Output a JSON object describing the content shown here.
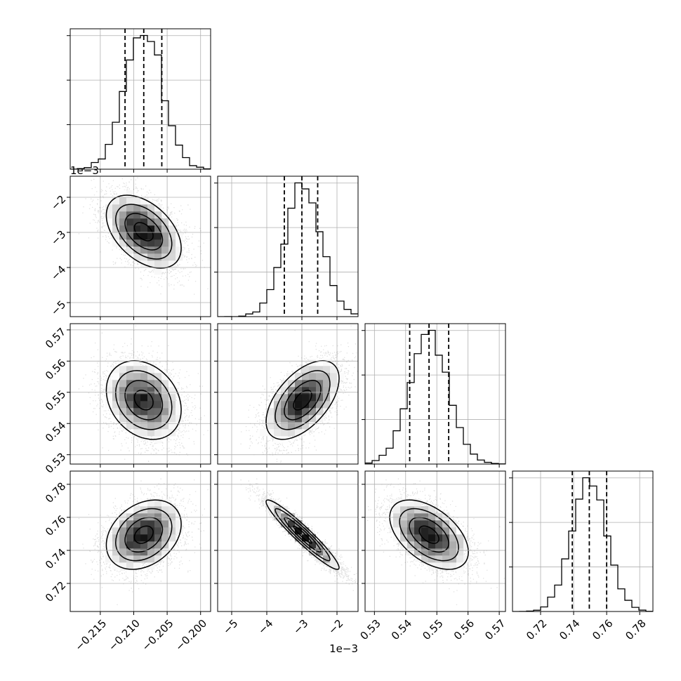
{
  "chart_data": {
    "type": "corner",
    "grid": true,
    "parameters": [
      {
        "range": [
          -0.2195,
          -0.1985
        ],
        "ticks": [
          -0.215,
          -0.21,
          -0.205,
          -0.2
        ],
        "tick_labels": [
          "−0.215",
          "−0.210",
          "−0.205",
          "−0.200"
        ],
        "offset_label": "",
        "center": -0.2085,
        "spread": 0.0028
      },
      {
        "range": [
          -5.4,
          -1.4
        ],
        "ticks": [
          -5,
          -4,
          -3,
          -2
        ],
        "tick_labels": [
          "−5",
          "−4",
          "−3",
          "−2"
        ],
        "offset_label": "1e−3",
        "center": -2.98,
        "spread": 0.52
      },
      {
        "range": [
          0.527,
          0.572
        ],
        "ticks": [
          0.53,
          0.54,
          0.55,
          0.56,
          0.57
        ],
        "tick_labels": [
          "0.53",
          "0.54",
          "0.55",
          "0.56",
          "0.57"
        ],
        "offset_label": "",
        "center": 0.5475,
        "spread": 0.0063
      },
      {
        "range": [
          0.703,
          0.788
        ],
        "ticks": [
          0.72,
          0.74,
          0.76,
          0.78
        ],
        "tick_labels": [
          "0.72",
          "0.74",
          "0.76",
          "0.78"
        ],
        "offset_label": "",
        "center": 0.7495,
        "spread": 0.0105
      }
    ],
    "correlations": {
      "1_0": -0.45,
      "2_0": -0.25,
      "2_1": 0.55,
      "3_0": 0.3,
      "3_1": -0.95,
      "3_2": -0.5
    },
    "quantiles": [
      [
        -0.2113,
        -0.2085,
        -0.2058
      ],
      [
        -3.5,
        -3.0,
        -2.55
      ],
      [
        0.5413,
        0.5475,
        0.5538
      ],
      [
        0.7392,
        0.7495,
        0.76
      ]
    ]
  }
}
